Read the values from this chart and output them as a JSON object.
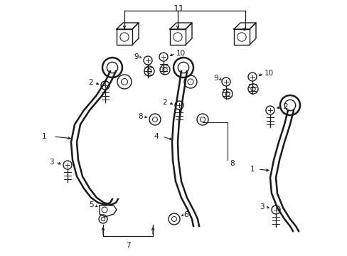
{
  "bg_color": "#ffffff",
  "line_color": "#1a1a1a",
  "text_color": "#1a1a1a",
  "fig_w": 4.89,
  "fig_h": 3.6,
  "dpi": 100
}
